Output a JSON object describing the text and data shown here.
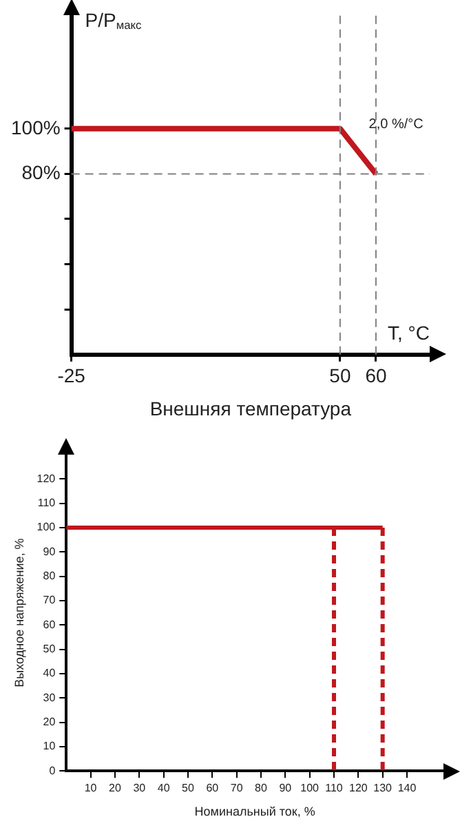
{
  "chart_data": [
    {
      "type": "line",
      "ylabel": "P/P$_{макс}$",
      "xlabel": "Внешняя температура",
      "x": [
        -25,
        50,
        60
      ],
      "series": [
        {
          "color": "#c0181e",
          "values": [
            100,
            100,
            80
          ]
        }
      ],
      "xlim": [
        -25,
        75
      ],
      "xticks": [
        -25,
        50,
        60
      ],
      "ylim": [
        0,
        150
      ],
      "yticks": [
        {
          "value": 20,
          "label": null
        },
        {
          "value": 40,
          "label": null
        },
        {
          "value": 60,
          "label": null
        },
        {
          "value": 80,
          "label": "80%"
        },
        {
          "value": 100,
          "label": "100%"
        }
      ],
      "ref_lines": [
        {
          "axis": "y",
          "value": 80,
          "line_style": "dashed",
          "color": "#808080"
        },
        {
          "axis": "x",
          "value": 50,
          "line_style": "dashed",
          "color": "#808080"
        },
        {
          "axis": "x",
          "value": 60,
          "line_style": "dashed",
          "color": "#808080"
        }
      ],
      "annotations": [
        "T, °C",
        "2,0 %/°C"
      ],
      "grid": false,
      "legend": false,
      "marker": "none"
    },
    {
      "type": "line",
      "ylabel": "Выходное напряжение, %",
      "xlabel": "Номинальный ток, %",
      "series": [
        {
          "color": "#c0181e",
          "x": [
            0,
            130
          ],
          "values": [
            100,
            100
          ],
          "line_style": "solid"
        },
        {
          "color": "#c0181e",
          "x": [
            110,
            110
          ],
          "values": [
            100,
            0
          ],
          "line_style": "dashed"
        },
        {
          "color": "#c0181e",
          "x": [
            130,
            130
          ],
          "values": [
            100,
            0
          ],
          "line_style": "dashed"
        }
      ],
      "xlim": [
        0,
        155
      ],
      "xticks": [
        10,
        20,
        30,
        40,
        50,
        60,
        70,
        80,
        90,
        100,
        110,
        120,
        130,
        140
      ],
      "ylim": [
        0,
        130
      ],
      "yticks": [
        0,
        10,
        20,
        30,
        40,
        50,
        60,
        70,
        80,
        90,
        100,
        110,
        120
      ],
      "grid": false,
      "legend": false,
      "marker": "none"
    }
  ]
}
